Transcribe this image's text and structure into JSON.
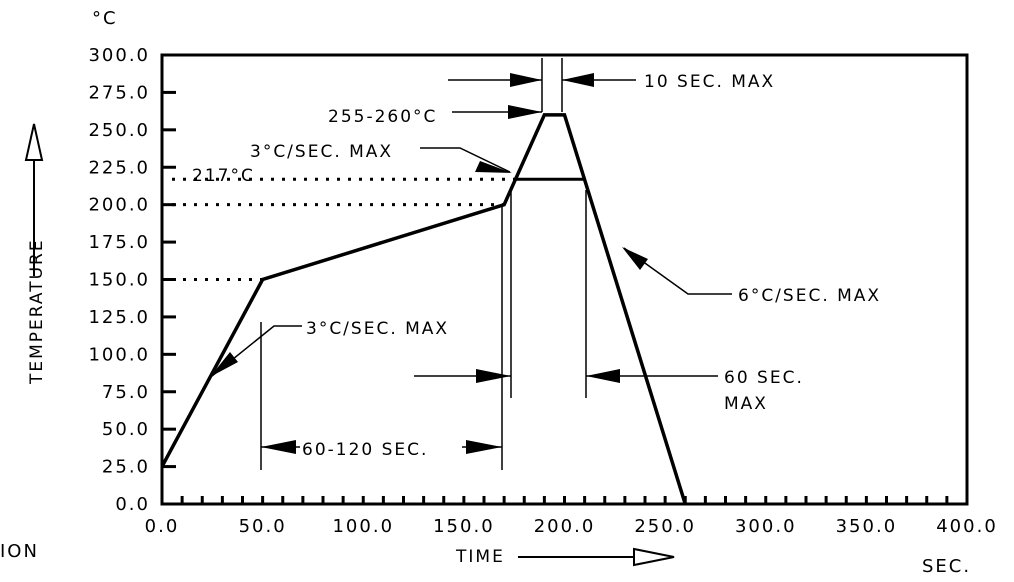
{
  "chart_data": {
    "type": "line",
    "title": "",
    "xlabel": "TIME",
    "ylabel": "TEMPERATURE",
    "x_unit": "SEC.",
    "y_unit": "°C",
    "xlim": [
      0,
      400
    ],
    "ylim": [
      0,
      300
    ],
    "x_ticks": [
      "0.0",
      "50.0",
      "100.0",
      "150.0",
      "200.0",
      "250.0",
      "300.0",
      "350.0",
      "400.0"
    ],
    "y_ticks": [
      "0.0",
      "25.0",
      "50.0",
      "75.0",
      "100.0",
      "125.0",
      "150.0",
      "175.0",
      "200.0",
      "225.0",
      "250.0",
      "275.0",
      "300.0"
    ],
    "grid": false,
    "series": [
      {
        "x": [
          0,
          50,
          170,
          190,
          200,
          260
        ],
        "y": [
          25,
          150,
          200,
          260,
          260,
          0
        ]
      }
    ],
    "reference_levels": [
      {
        "y": 217,
        "label": "217°C"
      },
      {
        "y": 200
      },
      {
        "y": 150
      }
    ],
    "annotations": {
      "peak": "255-260°C",
      "peak_time": "10 SEC. MAX",
      "preheat_ramp": "3°C/SEC. MAX",
      "reflow_ramp": "3°C/SEC. MAX",
      "cooling_ramp": "6°C/SEC. MAX",
      "soak_time": "60-120 SEC.",
      "liquidus_time_line1": "60 SEC.",
      "liquidus_time_line2": "MAX"
    },
    "cut_off_text": "ION"
  }
}
